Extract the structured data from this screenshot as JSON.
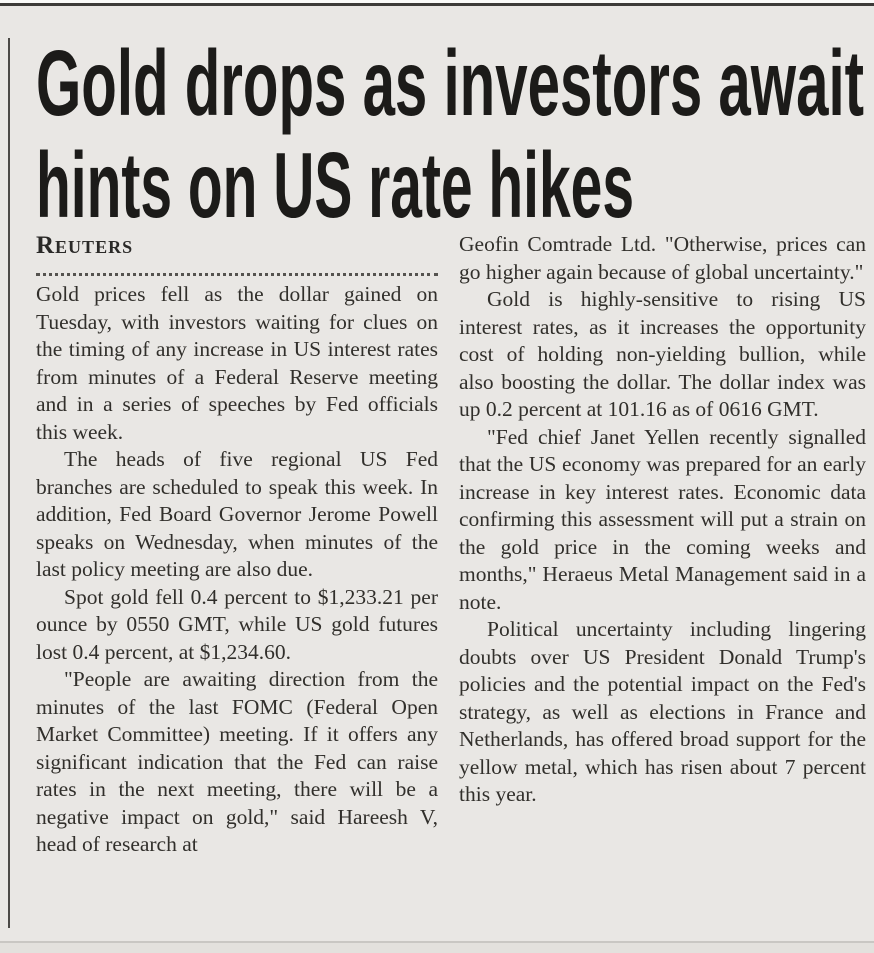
{
  "article": {
    "headline": {
      "line1": "Gold drops as investors await",
      "line2": "hints on US rate hikes"
    },
    "byline": "Reuters",
    "columns": {
      "left": {
        "paragraphs": [
          {
            "indent": false,
            "text": "Gold prices fell as the dollar gained on Tuesday, with investors waiting for clues on the timing of any increase in US interest rates from minutes of a Federal Reserve meeting and in a series of speeches by Fed officials this week."
          },
          {
            "indent": true,
            "text": "The heads of five regional US Fed branches are scheduled to speak this week. In addition, Fed Board Governor Jerome Powell speaks on Wednesday, when minutes of the last policy meeting are also due."
          },
          {
            "indent": true,
            "text": "Spot gold fell 0.4 percent to $1,233.21 per ounce by 0550 GMT, while US gold futures lost 0.4 percent, at $1,234.60."
          },
          {
            "indent": true,
            "text": "\"People are awaiting direction from the minutes of the last FOMC (Federal Open Market Committee) meeting. If it offers any significant indication that the Fed can raise rates in the next meeting, there will be a negative impact on gold,\" said Hareesh V, head of research at"
          }
        ]
      },
      "right": {
        "paragraphs": [
          {
            "indent": false,
            "text": "Geofin Comtrade Ltd. \"Otherwise, prices can go higher again because of global uncertainty.\""
          },
          {
            "indent": true,
            "text": "Gold is highly-sensitive to rising US interest rates, as it increases the opportunity cost of holding non-yielding bullion, while also boosting the dollar. The dollar index was up 0.2 percent at 101.16 as of 0616 GMT."
          },
          {
            "indent": true,
            "text": "\"Fed chief Janet Yellen recently signalled that the US economy was prepared for an early increase in key interest rates. Economic data confirming this assessment will put a strain on the gold price in the coming weeks and months,\" Heraeus Metal Management said in a note."
          },
          {
            "indent": true,
            "text": "Political uncertainty including lingering doubts over US President Donald Trump's policies and the potential impact on the Fed's strategy, as well as elections in France and Netherlands, has offered broad support for the yellow metal, which has risen about 7 percent this year."
          }
        ]
      }
    }
  },
  "colors": {
    "paper": "#e9e7e4",
    "body_ink": "#312f2b",
    "headline_ink": "#1c1b19",
    "rule": "#3d3b38"
  }
}
